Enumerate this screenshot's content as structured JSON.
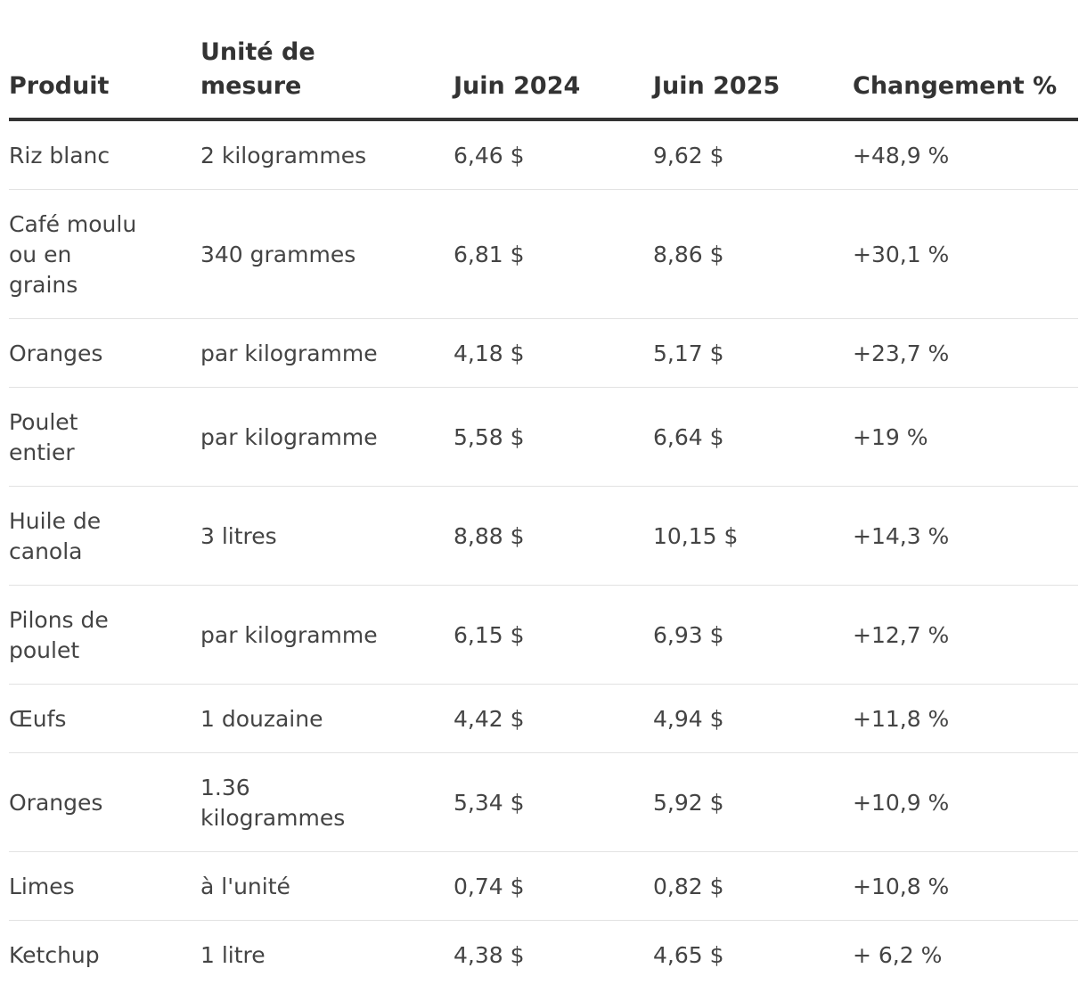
{
  "headers": {
    "product": "Produit",
    "unit": "Unité de mesure",
    "june_2024": "Juin 2024",
    "june_2025": "Juin 2025",
    "change": "Changement %"
  },
  "rows": [
    {
      "product": "Riz blanc",
      "unit": "2 kilogrammes",
      "june_2024": "6,46 $",
      "june_2025": "9,62 $",
      "change": "+48,9 %"
    },
    {
      "product": "Café moulu ou en grains",
      "unit": "340 grammes",
      "june_2024": "6,81 $",
      "june_2025": "8,86 $",
      "change": "+30,1 %"
    },
    {
      "product": "Oranges",
      "unit": "par kilogramme",
      "june_2024": "4,18 $",
      "june_2025": "5,17 $",
      "change": "+23,7 %"
    },
    {
      "product": "Poulet entier",
      "unit": "par kilogramme",
      "june_2024": "5,58 $",
      "june_2025": "6,64 $",
      "change": "+19 %"
    },
    {
      "product": "Huile de canola",
      "unit": "3 litres",
      "june_2024": "8,88 $",
      "june_2025": "10,15 $",
      "change": "+14,3 %"
    },
    {
      "product": "Pilons de poulet",
      "unit": "par kilogramme",
      "june_2024": "6,15 $",
      "june_2025": "6,93 $",
      "change": "+12,7 %"
    },
    {
      "product": "Œufs",
      "unit": "1 douzaine",
      "june_2024": "4,42 $",
      "june_2025": "4,94 $",
      "change": "+11,8 %"
    },
    {
      "product": "Oranges",
      "unit": "1.36 kilogrammes",
      "june_2024": "5,34 $",
      "june_2025": "5,92 $",
      "change": "+10,9 %"
    },
    {
      "product": "Limes",
      "unit": "à l'unité",
      "june_2024": "0,74 $",
      "june_2025": "0,82 $",
      "change": "+10,8 %"
    },
    {
      "product": "Ketchup",
      "unit": "1 litre",
      "june_2024": "4,38 $",
      "june_2025": "4,65 $",
      "change": "+ 6,2 %"
    }
  ]
}
